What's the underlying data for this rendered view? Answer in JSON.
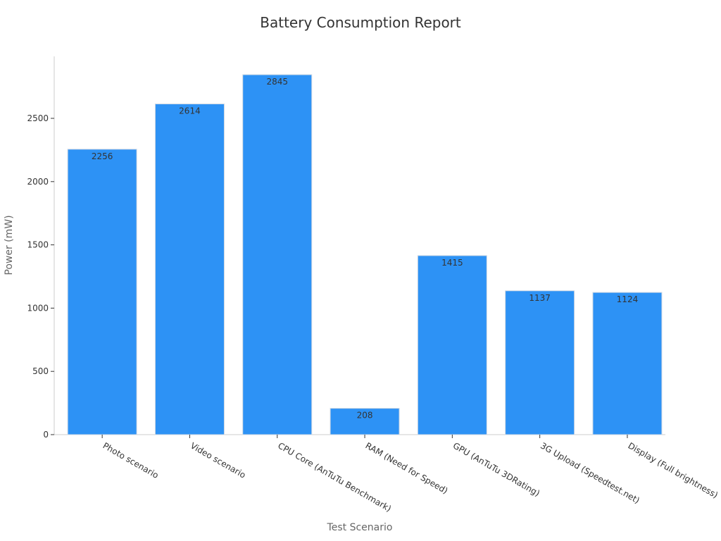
{
  "chart_data": {
    "type": "bar",
    "title": "Battery Consumption Report",
    "xlabel": "Test Scenario",
    "ylabel": "Power (mW)",
    "categories": [
      "Photo scenario",
      "Video scenario",
      "CPU Core (AnTuTu Benchmark)",
      "RAM (Need for Speed)",
      "GPU (AnTuTu 3DRating)",
      "3G Upload (Speedtest.net)",
      "Display (Full brightness)"
    ],
    "values": [
      2256,
      2614,
      2845,
      208,
      1415,
      1137,
      1124
    ],
    "ylim": [
      0,
      2990
    ],
    "yticks": [
      0,
      500,
      1000,
      1500,
      2000,
      2500
    ],
    "grid": false,
    "legend": "none",
    "colors": {
      "bar": "#2d92f5",
      "bar_edge": "#cfd8e3",
      "label": "#333333",
      "axis": "#cccccc"
    }
  }
}
